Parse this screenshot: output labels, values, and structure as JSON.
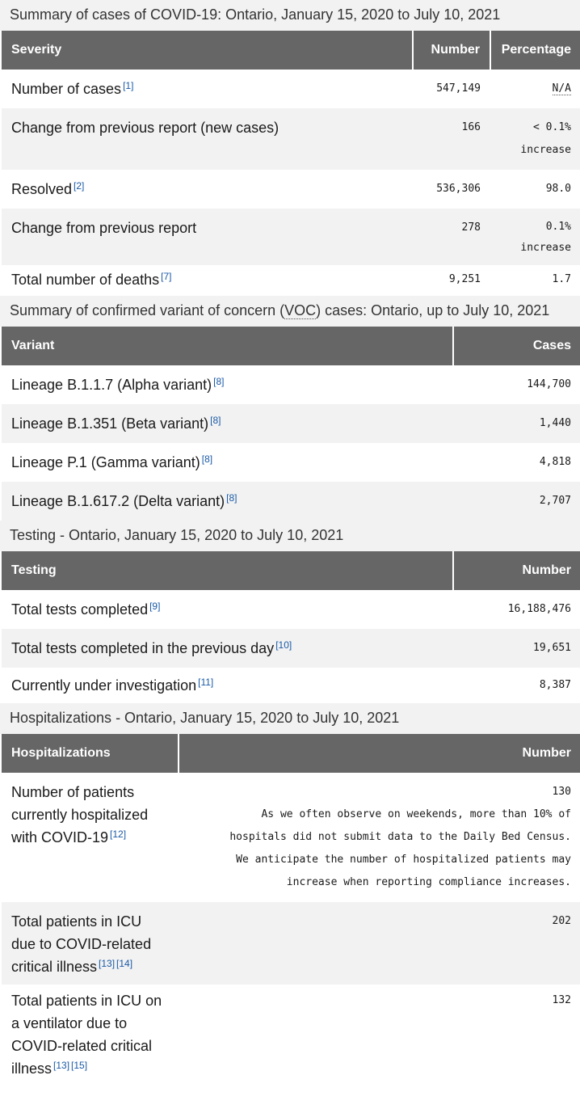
{
  "cases": {
    "caption": "Summary of cases of COVID-19: Ontario, January 15, 2020 to July 10, 2021",
    "headers": [
      "Severity",
      "Number",
      "Percentage"
    ],
    "rows": [
      {
        "label": "Number of cases",
        "fn": [
          "[1]"
        ],
        "number": "547,149",
        "pct": "N/A",
        "pct2": ""
      },
      {
        "label": "Change from previous report (new cases)",
        "fn": [],
        "number": "166",
        "pct": "< 0.1%",
        "pct2": "increase"
      },
      {
        "label": "Resolved",
        "fn": [
          "[2]"
        ],
        "number": "536,306",
        "pct": "98.0",
        "pct2": ""
      },
      {
        "label": "Change from previous report",
        "fn": [],
        "number": "278",
        "pct": "0.1%",
        "pct2": "increase"
      },
      {
        "label": "Total number of deaths",
        "fn": [
          "[7]"
        ],
        "number": "9,251",
        "pct": "1.7",
        "pct2": ""
      }
    ]
  },
  "variants": {
    "caption_pre": "Summary of confirmed variant of concern (",
    "caption_abbr": "VOC",
    "caption_post": ") cases: Ontario, up to July 10, 2021",
    "headers": [
      "Variant",
      "Cases"
    ],
    "rows": [
      {
        "label": "Lineage B.1.1.7 (Alpha variant)",
        "fn": "[8]",
        "cases": "144,700"
      },
      {
        "label": "Lineage B.1.351 (Beta variant)",
        "fn": "[8]",
        "cases": "1,440"
      },
      {
        "label": "Lineage P.1 (Gamma variant)",
        "fn": "[8]",
        "cases": "4,818"
      },
      {
        "label": "Lineage B.1.617.2 (Delta variant)",
        "fn": "[8]",
        "cases": "2,707"
      }
    ]
  },
  "testing": {
    "caption": "Testing - Ontario, January 15, 2020 to July 10, 2021",
    "headers": [
      "Testing",
      "Number"
    ],
    "rows": [
      {
        "label": "Total tests completed",
        "fn": "[9]",
        "number": "16,188,476"
      },
      {
        "label": "Total tests completed in the previous day",
        "fn": "[10]",
        "number": "19,651"
      },
      {
        "label": "Currently under investigation",
        "fn": "[11]",
        "number": "8,387"
      }
    ]
  },
  "hosp": {
    "caption": "Hospitalizations - Ontario, January 15, 2020 to July 10, 2021",
    "headers": [
      "Hospitalizations",
      "Number"
    ],
    "rows": [
      {
        "label": "Number of patients currently hospitalized with COVID-19",
        "fn": [
          "[12]"
        ],
        "number": "130",
        "note": [
          "As we often observe on weekends, more than 10% of",
          "hospitals did not submit data to the Daily Bed Census.",
          "We anticipate the number of hospitalized patients may",
          "increase when reporting compliance increases."
        ]
      },
      {
        "label": "Total patients in ICU due to COVID-related critical illness",
        "fn": [
          "[13]",
          "[14]"
        ],
        "number": "202",
        "note": []
      },
      {
        "label": "Total patients in ICU on a ventilator due to COVID-related critical illness",
        "fn": [
          "[13]",
          "[15]"
        ],
        "number": "132",
        "note": []
      }
    ]
  }
}
